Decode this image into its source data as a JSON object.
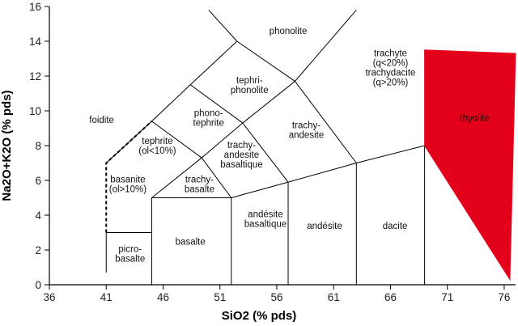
{
  "chart_data": {
    "type": "diagram",
    "title": "",
    "xlabel": "SiO2 (% pds)",
    "ylabel": "Na2O+K2O (% pds)",
    "xlim": [
      36,
      77
    ],
    "ylim": [
      0,
      16
    ],
    "xticks": [
      {
        "value": 36,
        "label": "36"
      },
      {
        "value": 41,
        "label": "41"
      },
      {
        "value": 46,
        "label": "46"
      },
      {
        "value": 51,
        "label": "51"
      },
      {
        "value": 56,
        "label": "56"
      },
      {
        "value": 61,
        "label": "61"
      },
      {
        "value": 66,
        "label": "66"
      },
      {
        "value": 71,
        "label": "71"
      },
      {
        "value": 76,
        "label": "76"
      }
    ],
    "yticks": [
      {
        "value": 0,
        "label": "0"
      },
      {
        "value": 2,
        "label": "2"
      },
      {
        "value": 4,
        "label": "4"
      },
      {
        "value": 6,
        "label": "6"
      },
      {
        "value": 8,
        "label": "8"
      },
      {
        "value": 10,
        "label": "10"
      },
      {
        "value": 12,
        "label": "12"
      },
      {
        "value": 14,
        "label": "14"
      },
      {
        "value": 16,
        "label": "16"
      }
    ],
    "boundaries": [
      {
        "name": "picro-left",
        "dashed": false,
        "points": [
          [
            41,
            0.7
          ],
          [
            41,
            3
          ]
        ]
      },
      {
        "name": "picro-top",
        "dashed": false,
        "points": [
          [
            41,
            3
          ],
          [
            45,
            3
          ]
        ]
      },
      {
        "name": "basalt-left",
        "dashed": false,
        "points": [
          [
            45,
            0
          ],
          [
            45,
            5
          ]
        ]
      },
      {
        "name": "basalt-top",
        "dashed": false,
        "points": [
          [
            45,
            5
          ],
          [
            52,
            5
          ]
        ]
      },
      {
        "name": "basalt-right",
        "dashed": false,
        "points": [
          [
            52,
            0
          ],
          [
            52,
            5
          ]
        ]
      },
      {
        "name": "andesite-basalt-right",
        "dashed": false,
        "points": [
          [
            57,
            0
          ],
          [
            57,
            5.9
          ]
        ]
      },
      {
        "name": "andesite-right",
        "dashed": false,
        "points": [
          [
            63,
            0
          ],
          [
            63,
            7
          ]
        ]
      },
      {
        "name": "dacite-right",
        "dashed": false,
        "points": [
          [
            69,
            0
          ],
          [
            69,
            8
          ]
        ]
      },
      {
        "name": "upper-boundary",
        "dashed": false,
        "points": [
          [
            52,
            5
          ],
          [
            57,
            5.9
          ],
          [
            63,
            7
          ],
          [
            69,
            8
          ]
        ]
      },
      {
        "name": "upper-left",
        "dashed": false,
        "points": [
          [
            45,
            5
          ],
          [
            49.4,
            7.3
          ]
        ]
      },
      {
        "name": "tephrite-lower",
        "dashed": false,
        "points": [
          [
            49.4,
            7.3
          ],
          [
            52,
            5
          ]
        ]
      },
      {
        "name": "trachy-lower",
        "dashed": false,
        "points": [
          [
            49.4,
            7.3
          ],
          [
            53,
            9.3
          ],
          [
            57.6,
            11.7
          ]
        ]
      },
      {
        "name": "trachy-upper",
        "dashed": false,
        "points": [
          [
            49.4,
            7.3
          ],
          [
            45,
            9.4
          ],
          [
            41,
            7
          ]
        ]
      },
      {
        "name": "trachyandesite-left",
        "dashed": false,
        "points": [
          [
            57,
            5.9
          ],
          [
            53,
            9.3
          ]
        ]
      },
      {
        "name": "trachyandesite-right",
        "dashed": false,
        "points": [
          [
            63,
            7
          ],
          [
            57.6,
            11.7
          ]
        ]
      },
      {
        "name": "phonotephrite-top",
        "dashed": false,
        "points": [
          [
            45,
            9.4
          ],
          [
            48.4,
            11.5
          ],
          [
            52.5,
            14
          ]
        ]
      },
      {
        "name": "phono-upper",
        "dashed": false,
        "points": [
          [
            48.4,
            11.5
          ],
          [
            53,
            9.3
          ]
        ]
      },
      {
        "name": "tephriphonolite-upper",
        "dashed": false,
        "points": [
          [
            52.5,
            14
          ],
          [
            57.6,
            11.7
          ]
        ]
      },
      {
        "name": "phonolite-left",
        "dashed": false,
        "points": [
          [
            52.5,
            14
          ],
          [
            50,
            15.8
          ]
        ]
      },
      {
        "name": "phonolite-right",
        "dashed": false,
        "points": [
          [
            57.6,
            11.7
          ],
          [
            63,
            15.8
          ]
        ]
      },
      {
        "name": "foidite-dashed",
        "dashed": true,
        "points": [
          [
            41,
            3
          ],
          [
            41,
            7
          ],
          [
            45,
            9.4
          ]
        ]
      }
    ],
    "highlight": {
      "name": "rhyolite",
      "color": "#e3001b",
      "points": [
        [
          69,
          13.5
        ],
        [
          69,
          8
        ],
        [
          76.5,
          0.3
        ],
        [
          77,
          13.3
        ]
      ]
    },
    "field_labels": [
      {
        "name": "phonolite",
        "lines": [
          "phonolite"
        ],
        "at": [
          57,
          14.6
        ]
      },
      {
        "name": "tephriphonolite",
        "lines": [
          "tephri-",
          "phonolite"
        ],
        "at": [
          53.6,
          11.5
        ]
      },
      {
        "name": "foidite",
        "lines": [
          "foidite"
        ],
        "at": [
          40.6,
          9.5
        ]
      },
      {
        "name": "phonotephrite",
        "lines": [
          "phono-",
          "tephrite"
        ],
        "at": [
          50,
          9.6
        ]
      },
      {
        "name": "trachyandesite",
        "lines": [
          "trachy-",
          "andesite"
        ],
        "at": [
          58.6,
          8.9
        ]
      },
      {
        "name": "trachybasaltic-andesite",
        "lines": [
          "trachy-",
          "andesite",
          "basaltique"
        ],
        "at": [
          52.9,
          7.5
        ]
      },
      {
        "name": "tephrite",
        "lines": [
          "tephrite",
          "(ol<10%)"
        ],
        "at": [
          45.5,
          8
        ]
      },
      {
        "name": "basanite",
        "lines": [
          "basanite",
          "(ol>10%)"
        ],
        "at": [
          42.9,
          5.8
        ]
      },
      {
        "name": "trachybasalt",
        "lines": [
          "trachy-",
          "basalte"
        ],
        "at": [
          49.2,
          5.8
        ]
      },
      {
        "name": "basalte",
        "lines": [
          "basalte"
        ],
        "at": [
          48.4,
          2.5
        ]
      },
      {
        "name": "picrobasalte",
        "lines": [
          "picro-",
          "basalte"
        ],
        "at": [
          43.1,
          1.8
        ]
      },
      {
        "name": "andesite-basaltique",
        "lines": [
          "andésite",
          "basaltique"
        ],
        "at": [
          55.0,
          3.8
        ]
      },
      {
        "name": "andesite",
        "lines": [
          "andésite"
        ],
        "at": [
          60.2,
          3.4
        ]
      },
      {
        "name": "dacite",
        "lines": [
          "dacite"
        ],
        "at": [
          66.4,
          3.4
        ]
      },
      {
        "name": "rhyolite",
        "lines": [
          "rhyolite"
        ],
        "at": [
          73.4,
          9.6
        ]
      },
      {
        "name": "trachyte",
        "lines": [
          "trachyte",
          "(q<20%)",
          "trachydacite",
          "(q>20%)"
        ],
        "at": [
          66.0,
          12.5
        ]
      }
    ]
  }
}
